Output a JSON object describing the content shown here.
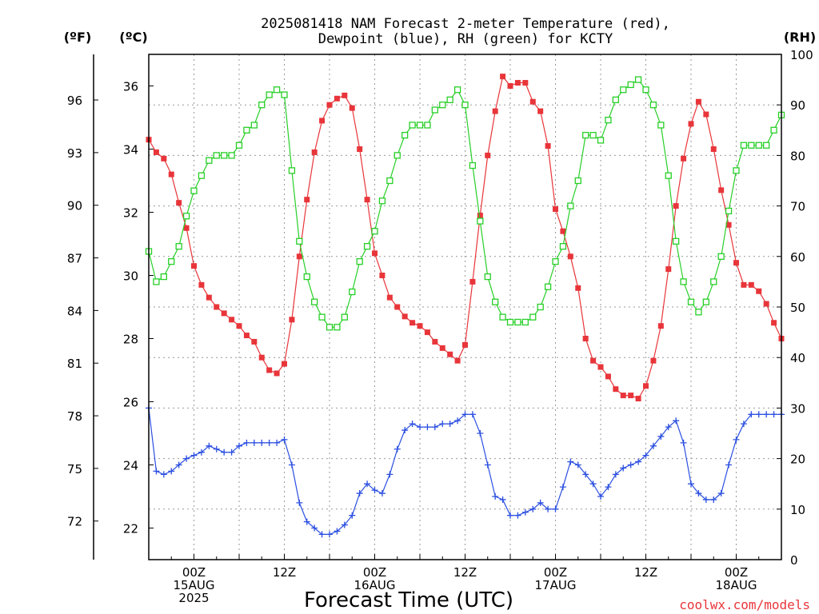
{
  "title_lines": [
    "2025081418 NAM Forecast 2-meter Temperature (red),",
    "Dewpoint (blue), RH (green) for KCTY"
  ],
  "units": {
    "fahrenheit": "(ºF)",
    "celsius": "(ºC)",
    "rh": "(RH)"
  },
  "xlabel": "Forecast Time (UTC)",
  "credit": "coolwx.com/models",
  "colors": {
    "temperature": "#e8353a",
    "dewpoint": "#2b4fe0",
    "rh": "#27cf27",
    "credit": "#e8353a",
    "grid": "#9a9a9a"
  },
  "chart_data": {
    "type": "line",
    "x_unit": "forecast hour from 2025-08-14 18Z",
    "xlim": [
      0,
      84
    ],
    "x_ticks": [
      {
        "x": 6,
        "lines": [
          "00Z",
          "15AUG",
          "2025"
        ]
      },
      {
        "x": 18,
        "lines": [
          "12Z"
        ]
      },
      {
        "x": 30,
        "lines": [
          "00Z",
          "16AUG"
        ]
      },
      {
        "x": 42,
        "lines": [
          "12Z"
        ]
      },
      {
        "x": 54,
        "lines": [
          "00Z",
          "17AUG"
        ]
      },
      {
        "x": 66,
        "lines": [
          "12Z"
        ]
      },
      {
        "x": 78,
        "lines": [
          "00Z",
          "18AUG"
        ]
      }
    ],
    "y_celsius": {
      "ylim": [
        21.0,
        37.0
      ],
      "ticks": [
        "22",
        "24",
        "26",
        "28",
        "30",
        "32",
        "34",
        "36"
      ]
    },
    "y_fahrenheit": {
      "ticks": [
        "72",
        "75",
        "78",
        "81",
        "84",
        "87",
        "90",
        "93",
        "96"
      ]
    },
    "y_rh": {
      "ylim": [
        0,
        100
      ],
      "ticks": [
        "0",
        "10",
        "20",
        "30",
        "40",
        "50",
        "60",
        "70",
        "80",
        "90",
        "100"
      ]
    },
    "grid": true,
    "series": [
      {
        "key": "temperature",
        "axis": "celsius",
        "marker": "filled-square",
        "x": [
          0,
          1,
          2,
          3,
          4,
          5,
          6,
          7,
          8,
          9,
          10,
          11,
          12,
          13,
          14,
          15,
          16,
          17,
          18,
          19,
          20,
          21,
          22,
          23,
          24,
          25,
          26,
          27,
          28,
          29,
          30,
          31,
          32,
          33,
          34,
          35,
          36,
          37,
          38,
          39,
          40,
          41,
          42,
          43,
          44,
          45,
          46,
          47,
          48,
          49,
          50,
          51,
          52,
          53,
          54,
          55,
          56,
          57,
          58,
          59,
          60,
          61,
          62,
          63,
          64,
          65,
          66,
          67,
          68,
          69,
          70,
          71,
          72,
          73,
          74,
          75,
          76,
          77,
          78,
          79,
          80,
          81,
          82,
          83,
          84
        ],
        "y": [
          34.3,
          33.9,
          33.7,
          33.2,
          32.3,
          31.5,
          30.3,
          29.7,
          29.3,
          29.0,
          28.8,
          28.6,
          28.4,
          28.1,
          27.9,
          27.4,
          27.0,
          26.9,
          27.2,
          28.6,
          30.6,
          32.4,
          33.9,
          34.9,
          35.4,
          35.6,
          35.7,
          35.3,
          34.0,
          32.4,
          30.7,
          30.0,
          29.3,
          29.0,
          28.7,
          28.5,
          28.4,
          28.2,
          27.9,
          27.7,
          27.5,
          27.3,
          27.8,
          29.8,
          31.9,
          33.8,
          35.2,
          36.3,
          36.0,
          36.1,
          36.1,
          35.5,
          35.2,
          34.1,
          32.1,
          31.4,
          30.6,
          29.6,
          28.0,
          27.3,
          27.1,
          26.8,
          26.4,
          26.2,
          26.2,
          26.1,
          26.5,
          27.3,
          28.4,
          30.2,
          32.2,
          33.7,
          34.8,
          35.5,
          35.1,
          34.0,
          32.7,
          31.6,
          30.4,
          29.7,
          29.7,
          29.5,
          29.1,
          28.5,
          28.0
        ]
      },
      {
        "key": "dewpoint",
        "axis": "celsius",
        "marker": "plus",
        "x": [
          0,
          1,
          2,
          3,
          4,
          5,
          6,
          7,
          8,
          9,
          10,
          11,
          12,
          13,
          14,
          15,
          16,
          17,
          18,
          19,
          20,
          21,
          22,
          23,
          24,
          25,
          26,
          27,
          28,
          29,
          30,
          31,
          32,
          33,
          34,
          35,
          36,
          37,
          38,
          39,
          40,
          41,
          42,
          43,
          44,
          45,
          46,
          47,
          48,
          49,
          50,
          51,
          52,
          53,
          54,
          55,
          56,
          57,
          58,
          59,
          60,
          61,
          62,
          63,
          64,
          65,
          66,
          67,
          68,
          69,
          70,
          71,
          72,
          73,
          74,
          75,
          76,
          77,
          78,
          79,
          80,
          81,
          82,
          83,
          84
        ],
        "y": [
          25.8,
          23.8,
          23.7,
          23.8,
          24.0,
          24.2,
          24.3,
          24.4,
          24.6,
          24.5,
          24.4,
          24.4,
          24.6,
          24.7,
          24.7,
          24.7,
          24.7,
          24.7,
          24.8,
          24.0,
          22.8,
          22.2,
          22.0,
          21.8,
          21.8,
          21.9,
          22.1,
          22.4,
          23.1,
          23.4,
          23.2,
          23.1,
          23.7,
          24.5,
          25.1,
          25.3,
          25.2,
          25.2,
          25.2,
          25.3,
          25.3,
          25.4,
          25.6,
          25.6,
          25.0,
          24.0,
          23.0,
          22.9,
          22.4,
          22.4,
          22.5,
          22.6,
          22.8,
          22.6,
          22.6,
          23.3,
          24.1,
          24.0,
          23.7,
          23.4,
          23.0,
          23.3,
          23.7,
          23.9,
          24.0,
          24.1,
          24.3,
          24.6,
          24.9,
          25.2,
          25.4,
          24.7,
          23.4,
          23.1,
          22.9,
          22.9,
          23.1,
          24.0,
          24.8,
          25.3,
          25.6,
          25.6,
          25.6,
          25.6,
          25.6
        ]
      },
      {
        "key": "rh",
        "axis": "rh",
        "marker": "open-square",
        "x": [
          0,
          1,
          2,
          3,
          4,
          5,
          6,
          7,
          8,
          9,
          10,
          11,
          12,
          13,
          14,
          15,
          16,
          17,
          18,
          19,
          20,
          21,
          22,
          23,
          24,
          25,
          26,
          27,
          28,
          29,
          30,
          31,
          32,
          33,
          34,
          35,
          36,
          37,
          38,
          39,
          40,
          41,
          42,
          43,
          44,
          45,
          46,
          47,
          48,
          49,
          50,
          51,
          52,
          53,
          54,
          55,
          56,
          57,
          58,
          59,
          60,
          61,
          62,
          63,
          64,
          65,
          66,
          67,
          68,
          69,
          70,
          71,
          72,
          73,
          74,
          75,
          76,
          77,
          78,
          79,
          80,
          81,
          82,
          83,
          84
        ],
        "y": [
          61,
          55,
          56,
          59,
          62,
          68,
          73,
          76,
          79,
          80,
          80,
          80,
          82,
          85,
          86,
          90,
          92,
          93,
          92,
          77,
          63,
          56,
          51,
          48,
          46,
          46,
          48,
          53,
          59,
          62,
          65,
          71,
          75,
          80,
          84,
          86,
          86,
          86,
          89,
          90,
          91,
          93,
          90,
          78,
          67,
          56,
          51,
          48,
          47,
          47,
          47,
          48,
          50,
          54,
          59,
          62,
          70,
          75,
          84,
          84,
          83,
          87,
          91,
          93,
          94,
          95,
          93,
          90,
          86,
          76,
          63,
          55,
          51,
          49,
          51,
          55,
          60,
          69,
          77,
          82,
          82,
          82,
          82,
          85,
          88
        ]
      }
    ]
  }
}
